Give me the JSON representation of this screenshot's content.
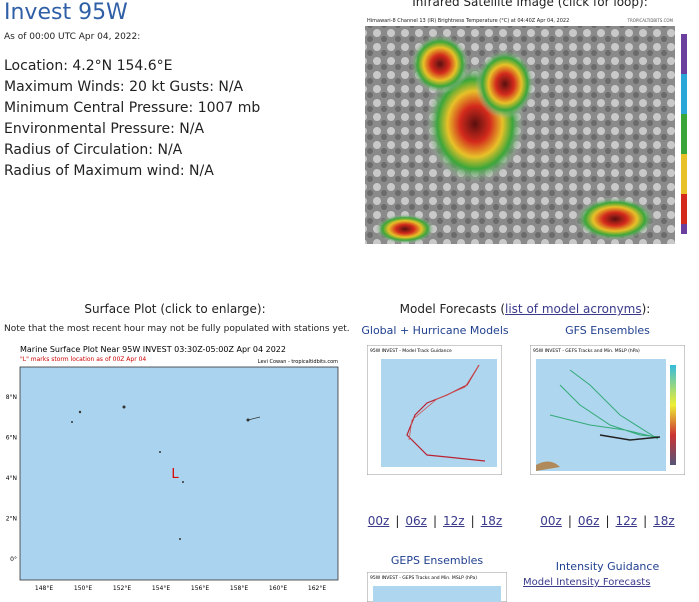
{
  "header": {
    "title": "Invest 95W",
    "as_of": "As of 00:00 UTC Apr 04, 2022:"
  },
  "details": [
    "Location: 4.2°N 154.6°E",
    "Maximum Winds: 20 kt  Gusts: N/A",
    "Minimum Central Pressure: 1007 mb",
    "Environmental Pressure: N/A",
    "Radius of Circulation: N/A",
    "Radius of Maximum wind: N/A"
  ],
  "satellite": {
    "heading": "Infrared Satellite Image (click for loop):",
    "caption": "Himawari-8 Channel 13 (IR) Brightness Temperature (°C) at 04:40Z Apr 04, 2022",
    "credit": "TROPICALTIDBITS.COM"
  },
  "surface": {
    "heading": "Surface Plot (click to enlarge):",
    "note": "Note that the most recent hour may not be fully populated with stations yet.",
    "map_title": "Marine Surface Plot Near 95W INVEST 03:30Z-05:00Z Apr 04 2022",
    "map_subtitle": "\"L\" marks storm location as of 00Z Apr 04",
    "credit": "Levi Cowan - tropicaltidbits.com",
    "x_labels": [
      "148°E",
      "150°E",
      "152°E",
      "154°E",
      "156°E",
      "158°E",
      "160°E",
      "162°E"
    ],
    "y_labels": [
      "8°N",
      "6°N",
      "4°N",
      "2°N",
      "0°"
    ],
    "storm_marker": "L"
  },
  "models": {
    "heading_prefix": "Model Forecasts (",
    "acronyms_link": "list of model acronyms",
    "heading_suffix": "):",
    "global": {
      "heading": "Global + Hurricane Models",
      "image_title": "95W INVEST - Model Track Guidance",
      "links": [
        "00z",
        "06z",
        "12z",
        "18z"
      ]
    },
    "gefs": {
      "heading": "GFS Ensembles",
      "image_title": "95W INVEST - GEFS Tracks and Min. MSLP (hPa)",
      "links": [
        "00z",
        "06z",
        "12z",
        "18z"
      ]
    },
    "geps": {
      "heading": "GEPS Ensembles",
      "image_title": "95W INVEST - GEPS Tracks and Min. MSLP (hPa)"
    },
    "intensity": {
      "heading": "Intensity Guidance",
      "link": "Model Intensity Forecasts"
    },
    "separator": "|"
  }
}
